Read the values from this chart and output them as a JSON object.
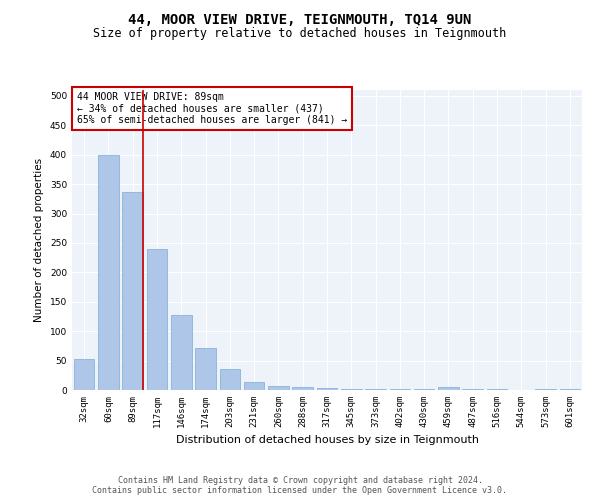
{
  "title": "44, MOOR VIEW DRIVE, TEIGNMOUTH, TQ14 9UN",
  "subtitle": "Size of property relative to detached houses in Teignmouth",
  "xlabel": "Distribution of detached houses by size in Teignmouth",
  "ylabel": "Number of detached properties",
  "categories": [
    "32sqm",
    "60sqm",
    "89sqm",
    "117sqm",
    "146sqm",
    "174sqm",
    "203sqm",
    "231sqm",
    "260sqm",
    "288sqm",
    "317sqm",
    "345sqm",
    "373sqm",
    "402sqm",
    "430sqm",
    "459sqm",
    "487sqm",
    "516sqm",
    "544sqm",
    "573sqm",
    "601sqm"
  ],
  "values": [
    52,
    400,
    337,
    240,
    128,
    72,
    35,
    14,
    7,
    5,
    3,
    2,
    1,
    1,
    1,
    5,
    2,
    1,
    0,
    1,
    2
  ],
  "bar_color": "#aec6e8",
  "bar_edge_color": "#7aadd4",
  "vline_x_index": 2,
  "vline_color": "#cc0000",
  "annotation_text": "44 MOOR VIEW DRIVE: 89sqm\n← 34% of detached houses are smaller (437)\n65% of semi-detached houses are larger (841) →",
  "annotation_box_color": "#ffffff",
  "annotation_box_edge_color": "#cc0000",
  "ylim": [
    0,
    510
  ],
  "yticks": [
    0,
    50,
    100,
    150,
    200,
    250,
    300,
    350,
    400,
    450,
    500
  ],
  "background_color": "#eef2f9",
  "footer_line1": "Contains HM Land Registry data © Crown copyright and database right 2024.",
  "footer_line2": "Contains public sector information licensed under the Open Government Licence v3.0.",
  "title_fontsize": 10,
  "subtitle_fontsize": 8.5,
  "xlabel_fontsize": 8,
  "ylabel_fontsize": 7.5,
  "tick_fontsize": 6.5,
  "annotation_fontsize": 7,
  "footer_fontsize": 6
}
